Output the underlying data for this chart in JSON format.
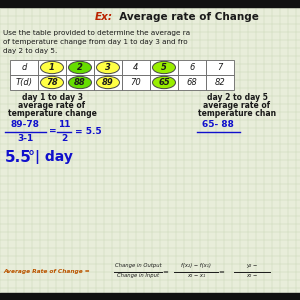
{
  "title_ex": "Ex:",
  "title_main": "  Average rate of Change",
  "problem_line1": "Use the table provided to determine the average ra",
  "problem_line2": "of temperature change from day 1 to day 3 and fro",
  "problem_line3": "day 2 to day 5.",
  "table_headers": [
    "d",
    "1",
    "2",
    "3",
    "4",
    "5",
    "6",
    "7"
  ],
  "table_values": [
    "T(d)",
    "78",
    "88",
    "89",
    "70",
    "65",
    "68",
    "82"
  ],
  "col_colors": {
    "1": "#ffff44",
    "2": "#66dd00",
    "3": "#ffff44",
    "5": "#99ee00"
  },
  "left_label1": "day 1 to day 3",
  "left_label2": "average rate of",
  "left_label3": "temperature change",
  "right_label1": "day 2 to day 5",
  "right_label2": "average rate of",
  "right_label3": "temperature chan",
  "left_calc_num": "89-78",
  "left_calc_den": "3-1",
  "left_calc_mid_num": "11",
  "left_calc_mid_den": "2",
  "left_result": "= 5.5",
  "right_calc_num": "65- 88",
  "left_final": "5.5",
  "left_final2": "°| day",
  "formula_label": "Average Rate of Change =",
  "formula_frac1_num": "Change in Output",
  "formula_frac1_den": "Change in Input",
  "formula_eq1": "=",
  "formula_frac2_num": "f(x₂) − f(x₁)",
  "formula_frac2_den": "x₂ − x₁",
  "formula_eq2": "=",
  "formula_frac3_num": "y₂ −",
  "formula_frac3_den": "x₂ −",
  "bg_color": "#e8edda",
  "grid_color": "#c5d4b0",
  "text_black": "#1a1a1a",
  "text_blue": "#1010cc",
  "text_red": "#bb2200",
  "text_orange": "#bb5500",
  "bar_black": "#111111"
}
